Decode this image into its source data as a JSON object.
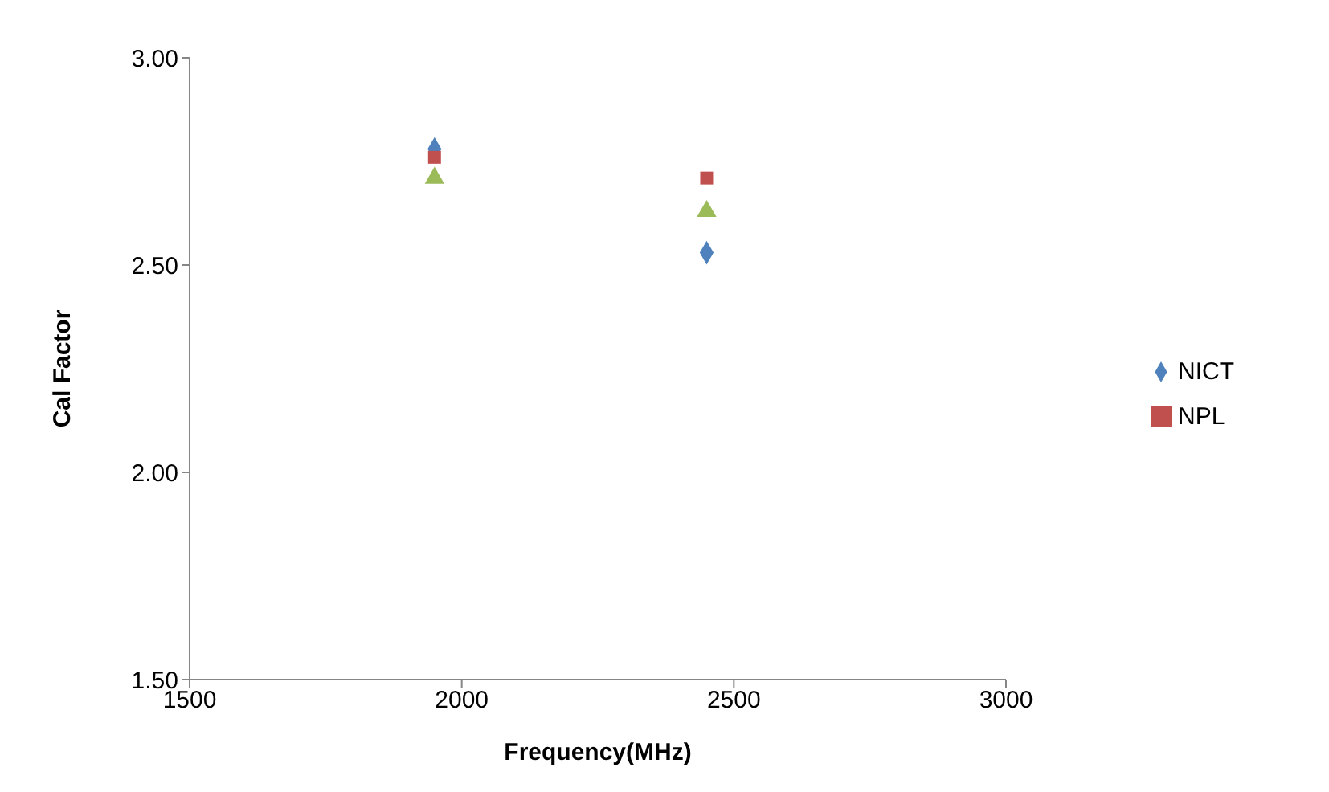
{
  "chart_data": {
    "type": "scatter",
    "xlabel": "Frequency(MHz)",
    "ylabel": "Cal Factor",
    "xlim": [
      1500,
      3000
    ],
    "xticks": [
      1500,
      2000,
      2500,
      3000
    ],
    "ylim": [
      1.5,
      3.0
    ],
    "yticks": [
      {
        "value": 1.5,
        "label": "1.50"
      },
      {
        "value": 2.0,
        "label": "2.00"
      },
      {
        "value": 2.5,
        "label": "2.50"
      },
      {
        "value": 3.0,
        "label": "3.00"
      }
    ],
    "grid": false,
    "legend": "right",
    "x": [
      1950,
      2450
    ],
    "series": [
      {
        "name": "NICT",
        "color": "#4f81bd",
        "marker": "diamond",
        "values": [
          2.78,
          2.53
        ]
      },
      {
        "name": "NPL",
        "color": "#c0504d",
        "marker": "square",
        "values": [
          2.76,
          2.71
        ]
      },
      {
        "color": "#9bbb59",
        "marker": "triangle",
        "values": [
          2.71,
          2.63
        ]
      }
    ]
  }
}
